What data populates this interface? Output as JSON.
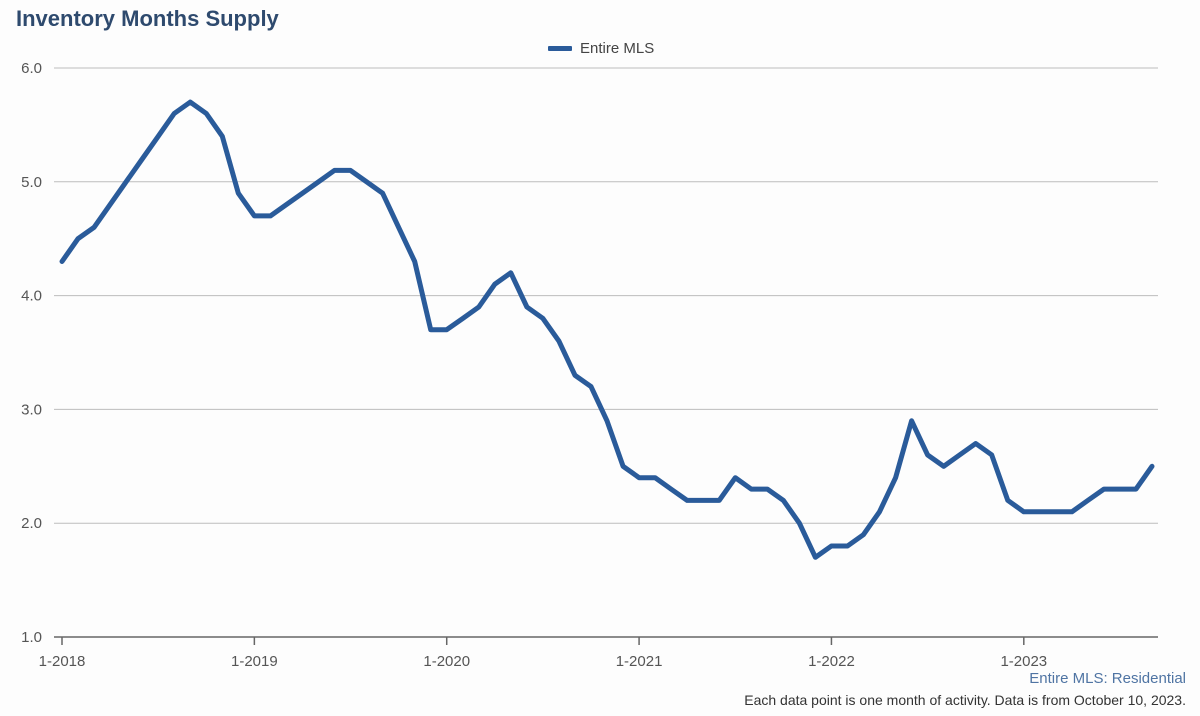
{
  "title": "Inventory Months Supply",
  "legend": {
    "label": "Entire MLS",
    "color": "#2a5b9a"
  },
  "source_label": "Entire MLS: Residential",
  "footnote": "Each data point is one month of activity. Data is from October 10, 2023.",
  "chart_data": {
    "type": "line",
    "title": "Inventory Months Supply",
    "xlabel": "",
    "ylabel": "",
    "ylim": [
      1.0,
      6.0
    ],
    "y_ticks": [
      "1.0",
      "2.0",
      "3.0",
      "4.0",
      "5.0",
      "6.0"
    ],
    "x_ticks": [
      "1-2018",
      "1-2019",
      "1-2020",
      "1-2021",
      "1-2022",
      "1-2023"
    ],
    "x_start": "2018-01",
    "grid": true,
    "legend_position": "top-center",
    "series": [
      {
        "name": "Entire MLS",
        "color": "#2a5b9a",
        "values": [
          4.3,
          4.5,
          4.6,
          4.8,
          5.0,
          5.2,
          5.4,
          5.6,
          5.7,
          5.6,
          5.4,
          4.9,
          4.7,
          4.7,
          4.8,
          4.9,
          5.0,
          5.1,
          5.1,
          5.0,
          4.9,
          4.6,
          4.3,
          3.7,
          3.7,
          3.8,
          3.9,
          4.1,
          4.2,
          3.9,
          3.8,
          3.6,
          3.3,
          3.2,
          2.9,
          2.5,
          2.4,
          2.4,
          2.3,
          2.2,
          2.2,
          2.2,
          2.4,
          2.3,
          2.3,
          2.2,
          2.0,
          1.7,
          1.8,
          1.8,
          1.9,
          2.1,
          2.4,
          2.9,
          2.6,
          2.5,
          2.6,
          2.7,
          2.6,
          2.2,
          2.1,
          2.1,
          2.1,
          2.1,
          2.2,
          2.3,
          2.3,
          2.3,
          2.5
        ]
      }
    ]
  }
}
